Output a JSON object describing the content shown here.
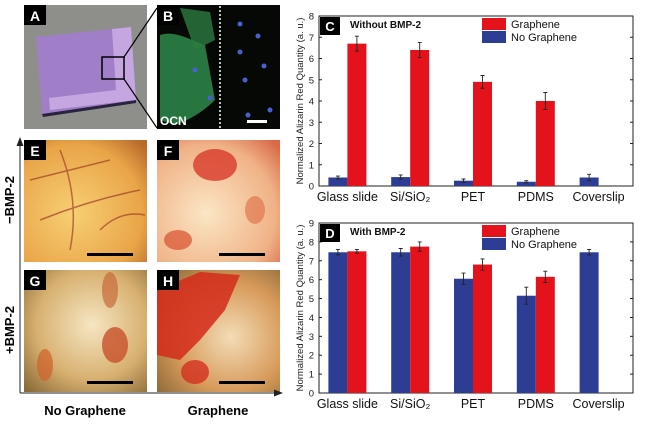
{
  "panels": {
    "A": {
      "letter": "A"
    },
    "B": {
      "letter": "B",
      "stain_label": "OCN"
    },
    "E": {
      "letter": "E"
    },
    "F": {
      "letter": "F"
    },
    "G": {
      "letter": "G"
    },
    "H": {
      "letter": "H"
    }
  },
  "row_labels": [
    "−BMP-2",
    "+BMP-2"
  ],
  "column_labels": [
    "No Graphene",
    "Graphene"
  ],
  "colors": {
    "graphene": "#e3121b",
    "no_graphene": "#2e3d94"
  },
  "chart_data": [
    {
      "type": "bar",
      "panel_letter": "C",
      "title": "Without BMP-2",
      "ylabel": "Normalized Alizarin Red Quantity (a. u.)",
      "ylim": [
        0,
        8
      ],
      "yticks": [
        "0",
        "1",
        "2",
        "3",
        "4",
        "5",
        "6",
        "7",
        "8"
      ],
      "categories": [
        "Glass slide",
        "Si/SiO₂",
        "PET",
        "PDMS",
        "Coverslip"
      ],
      "legend_placement": "top-center",
      "series": [
        {
          "name": "Graphene",
          "values": [
            6.7,
            6.4,
            4.9,
            4.0,
            null
          ],
          "errors": [
            0.35,
            0.35,
            0.3,
            0.4,
            null
          ]
        },
        {
          "name": "No Graphene",
          "values": [
            0.4,
            0.42,
            0.25,
            0.2,
            0.4
          ],
          "errors": [
            0.07,
            0.1,
            0.08,
            0.05,
            0.15
          ]
        }
      ]
    },
    {
      "type": "bar",
      "panel_letter": "D",
      "title": "With BMP-2",
      "ylabel": "Normalized Alizarin Red Quantity (a. u.)",
      "ylim": [
        0,
        9
      ],
      "yticks": [
        "0",
        "1",
        "2",
        "3",
        "4",
        "5",
        "6",
        "7",
        "8",
        "9"
      ],
      "categories": [
        "Glass slide",
        "Si/SiO₂",
        "PET",
        "PDMS",
        "Coverslip"
      ],
      "legend_placement": "top-center",
      "series": [
        {
          "name": "Graphene",
          "values": [
            7.5,
            7.75,
            6.8,
            6.15,
            null
          ],
          "errors": [
            0.1,
            0.25,
            0.3,
            0.3,
            null
          ]
        },
        {
          "name": "No Graphene",
          "values": [
            7.45,
            7.45,
            6.05,
            5.15,
            7.45
          ],
          "errors": [
            0.15,
            0.2,
            0.3,
            0.45,
            0.15
          ]
        }
      ]
    }
  ]
}
